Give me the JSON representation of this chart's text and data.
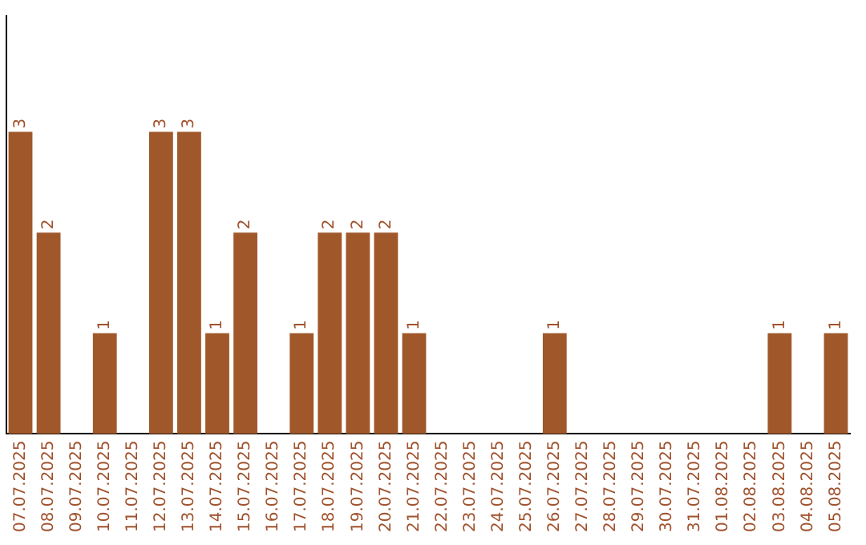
{
  "chart_data": {
    "type": "bar",
    "categories": [
      "07.07.2025",
      "08.07.2025",
      "09.07.2025",
      "10.07.2025",
      "11.07.2025",
      "12.07.2025",
      "13.07.2025",
      "14.07.2025",
      "15.07.2025",
      "16.07.2025",
      "17.07.2025",
      "18.07.2025",
      "19.07.2025",
      "20.07.2025",
      "21.07.2025",
      "22.07.2025",
      "23.07.2025",
      "24.07.2025",
      "25.07.2025",
      "26.07.2025",
      "27.07.2025",
      "28.07.2025",
      "29.07.2025",
      "30.07.2025",
      "31.07.2025",
      "01.08.2025",
      "02.08.2025",
      "03.08.2025",
      "04.08.2025",
      "05.08.2025"
    ],
    "values": [
      3,
      2,
      0,
      1,
      0,
      3,
      3,
      1,
      2,
      0,
      1,
      2,
      2,
      2,
      1,
      0,
      0,
      0,
      0,
      1,
      0,
      0,
      0,
      0,
      0,
      0,
      0,
      1,
      0,
      1
    ],
    "value_labels": [
      "3",
      "2",
      null,
      "1",
      null,
      "3",
      "3",
      "1",
      "2",
      null,
      "1",
      "2",
      "2",
      "2",
      "1",
      null,
      null,
      null,
      null,
      "1",
      null,
      null,
      null,
      null,
      null,
      null,
      null,
      "1",
      null,
      "1"
    ],
    "color": "#a0582a",
    "ylim": [
      0,
      4.15
    ],
    "tick_labels": "x",
    "grid": false,
    "legend": false
  }
}
